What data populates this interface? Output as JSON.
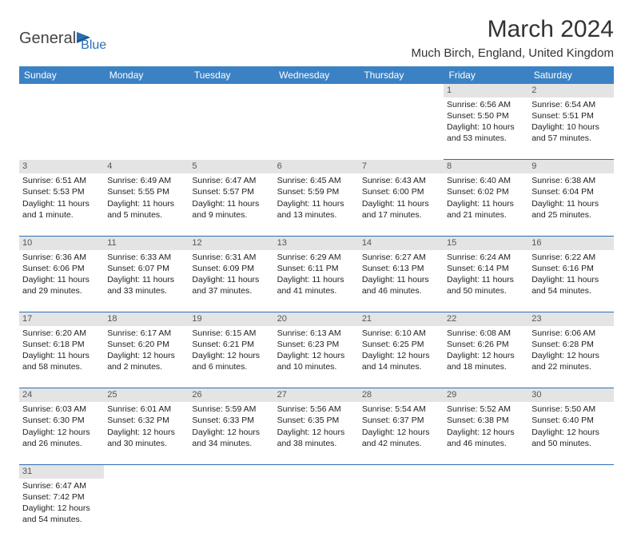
{
  "branding": {
    "part1": "General",
    "part2": "Blue"
  },
  "title": "March 2024",
  "location": "Much Birch, England, United Kingdom",
  "colors": {
    "header_bg": "#3b82c4",
    "header_text": "#ffffff",
    "border": "#2a6fb5",
    "daynum_bg": "#e4e4e4",
    "text": "#222222"
  },
  "weekdays": [
    "Sunday",
    "Monday",
    "Tuesday",
    "Wednesday",
    "Thursday",
    "Friday",
    "Saturday"
  ],
  "weeks": [
    [
      null,
      null,
      null,
      null,
      null,
      {
        "n": "1",
        "sr": "Sunrise: 6:56 AM",
        "ss": "Sunset: 5:50 PM",
        "dl": "Daylight: 10 hours and 53 minutes."
      },
      {
        "n": "2",
        "sr": "Sunrise: 6:54 AM",
        "ss": "Sunset: 5:51 PM",
        "dl": "Daylight: 10 hours and 57 minutes."
      }
    ],
    [
      {
        "n": "3",
        "sr": "Sunrise: 6:51 AM",
        "ss": "Sunset: 5:53 PM",
        "dl": "Daylight: 11 hours and 1 minute."
      },
      {
        "n": "4",
        "sr": "Sunrise: 6:49 AM",
        "ss": "Sunset: 5:55 PM",
        "dl": "Daylight: 11 hours and 5 minutes."
      },
      {
        "n": "5",
        "sr": "Sunrise: 6:47 AM",
        "ss": "Sunset: 5:57 PM",
        "dl": "Daylight: 11 hours and 9 minutes."
      },
      {
        "n": "6",
        "sr": "Sunrise: 6:45 AM",
        "ss": "Sunset: 5:59 PM",
        "dl": "Daylight: 11 hours and 13 minutes."
      },
      {
        "n": "7",
        "sr": "Sunrise: 6:43 AM",
        "ss": "Sunset: 6:00 PM",
        "dl": "Daylight: 11 hours and 17 minutes."
      },
      {
        "n": "8",
        "sr": "Sunrise: 6:40 AM",
        "ss": "Sunset: 6:02 PM",
        "dl": "Daylight: 11 hours and 21 minutes."
      },
      {
        "n": "9",
        "sr": "Sunrise: 6:38 AM",
        "ss": "Sunset: 6:04 PM",
        "dl": "Daylight: 11 hours and 25 minutes."
      }
    ],
    [
      {
        "n": "10",
        "sr": "Sunrise: 6:36 AM",
        "ss": "Sunset: 6:06 PM",
        "dl": "Daylight: 11 hours and 29 minutes."
      },
      {
        "n": "11",
        "sr": "Sunrise: 6:33 AM",
        "ss": "Sunset: 6:07 PM",
        "dl": "Daylight: 11 hours and 33 minutes."
      },
      {
        "n": "12",
        "sr": "Sunrise: 6:31 AM",
        "ss": "Sunset: 6:09 PM",
        "dl": "Daylight: 11 hours and 37 minutes."
      },
      {
        "n": "13",
        "sr": "Sunrise: 6:29 AM",
        "ss": "Sunset: 6:11 PM",
        "dl": "Daylight: 11 hours and 41 minutes."
      },
      {
        "n": "14",
        "sr": "Sunrise: 6:27 AM",
        "ss": "Sunset: 6:13 PM",
        "dl": "Daylight: 11 hours and 46 minutes."
      },
      {
        "n": "15",
        "sr": "Sunrise: 6:24 AM",
        "ss": "Sunset: 6:14 PM",
        "dl": "Daylight: 11 hours and 50 minutes."
      },
      {
        "n": "16",
        "sr": "Sunrise: 6:22 AM",
        "ss": "Sunset: 6:16 PM",
        "dl": "Daylight: 11 hours and 54 minutes."
      }
    ],
    [
      {
        "n": "17",
        "sr": "Sunrise: 6:20 AM",
        "ss": "Sunset: 6:18 PM",
        "dl": "Daylight: 11 hours and 58 minutes."
      },
      {
        "n": "18",
        "sr": "Sunrise: 6:17 AM",
        "ss": "Sunset: 6:20 PM",
        "dl": "Daylight: 12 hours and 2 minutes."
      },
      {
        "n": "19",
        "sr": "Sunrise: 6:15 AM",
        "ss": "Sunset: 6:21 PM",
        "dl": "Daylight: 12 hours and 6 minutes."
      },
      {
        "n": "20",
        "sr": "Sunrise: 6:13 AM",
        "ss": "Sunset: 6:23 PM",
        "dl": "Daylight: 12 hours and 10 minutes."
      },
      {
        "n": "21",
        "sr": "Sunrise: 6:10 AM",
        "ss": "Sunset: 6:25 PM",
        "dl": "Daylight: 12 hours and 14 minutes."
      },
      {
        "n": "22",
        "sr": "Sunrise: 6:08 AM",
        "ss": "Sunset: 6:26 PM",
        "dl": "Daylight: 12 hours and 18 minutes."
      },
      {
        "n": "23",
        "sr": "Sunrise: 6:06 AM",
        "ss": "Sunset: 6:28 PM",
        "dl": "Daylight: 12 hours and 22 minutes."
      }
    ],
    [
      {
        "n": "24",
        "sr": "Sunrise: 6:03 AM",
        "ss": "Sunset: 6:30 PM",
        "dl": "Daylight: 12 hours and 26 minutes."
      },
      {
        "n": "25",
        "sr": "Sunrise: 6:01 AM",
        "ss": "Sunset: 6:32 PM",
        "dl": "Daylight: 12 hours and 30 minutes."
      },
      {
        "n": "26",
        "sr": "Sunrise: 5:59 AM",
        "ss": "Sunset: 6:33 PM",
        "dl": "Daylight: 12 hours and 34 minutes."
      },
      {
        "n": "27",
        "sr": "Sunrise: 5:56 AM",
        "ss": "Sunset: 6:35 PM",
        "dl": "Daylight: 12 hours and 38 minutes."
      },
      {
        "n": "28",
        "sr": "Sunrise: 5:54 AM",
        "ss": "Sunset: 6:37 PM",
        "dl": "Daylight: 12 hours and 42 minutes."
      },
      {
        "n": "29",
        "sr": "Sunrise: 5:52 AM",
        "ss": "Sunset: 6:38 PM",
        "dl": "Daylight: 12 hours and 46 minutes."
      },
      {
        "n": "30",
        "sr": "Sunrise: 5:50 AM",
        "ss": "Sunset: 6:40 PM",
        "dl": "Daylight: 12 hours and 50 minutes."
      }
    ],
    [
      {
        "n": "31",
        "sr": "Sunrise: 6:47 AM",
        "ss": "Sunset: 7:42 PM",
        "dl": "Daylight: 12 hours and 54 minutes."
      },
      null,
      null,
      null,
      null,
      null,
      null
    ]
  ]
}
